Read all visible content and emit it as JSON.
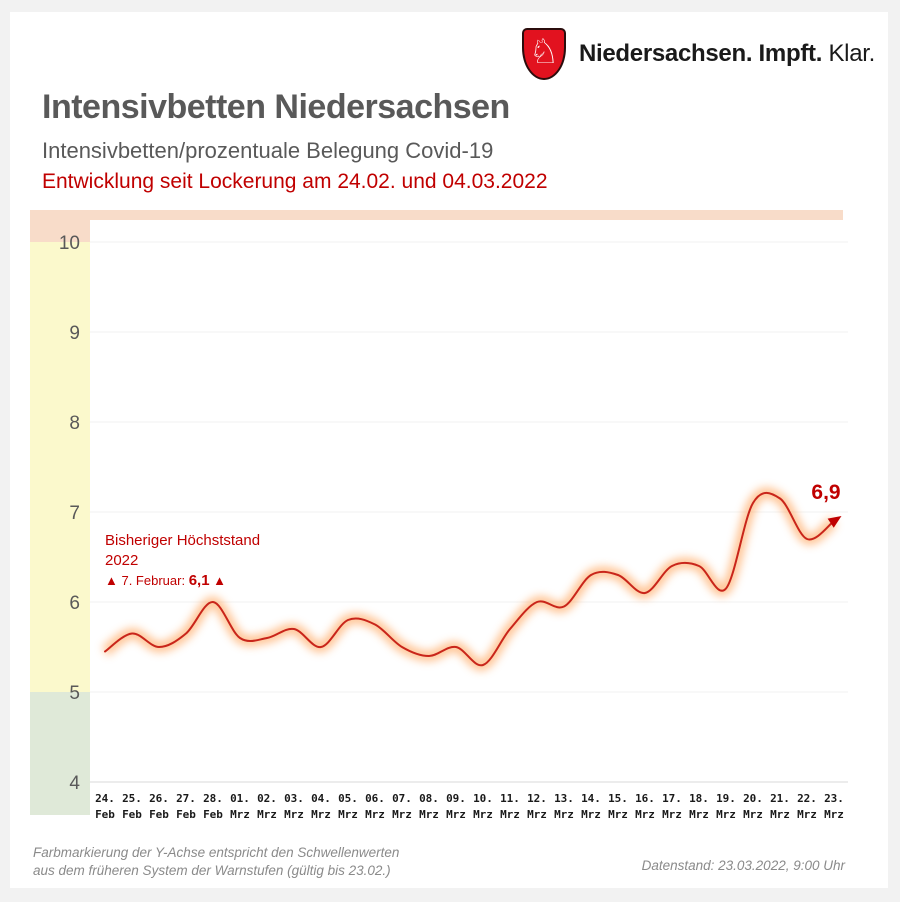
{
  "header": {
    "shield_icon": "niedersachsen-horse-shield",
    "horse_glyph": "♘",
    "brand_bold": "Niedersachsen. Impft.",
    "brand_light": "Klar.",
    "shield_color": "#e2121f"
  },
  "titles": {
    "main": "Intensivbetten Niedersachsen",
    "sub": "Intensivbetten/prozentuale Belegung Covid-19",
    "highlight": "Entwicklung seit Lockerung am 24.02. und 04.03.2022"
  },
  "annotation": {
    "line1": "Bisheriger Höchststand",
    "line2": "2022",
    "line3_prefix": "▲ 7. Februar: ",
    "line3_value": "6,1",
    "line3_suffix": " ▲"
  },
  "end_label": "6,9",
  "footer": {
    "note_line1": "Farbmarkierung der Y-Achse entspricht den Schwellenwerten",
    "note_line2": "aus dem früheren System der Warnstufen (gültig bis 23.02.)",
    "datenstand": "Datenstand: 23.03.2022, 9:00 Uhr"
  },
  "chart_data": {
    "type": "line",
    "title": "Intensivbetten/prozentuale Belegung Covid-19",
    "categories": [
      "24. Feb",
      "25. Feb",
      "26. Feb",
      "27. Feb",
      "28. Feb",
      "01. Mrz",
      "02. Mrz",
      "03. Mrz",
      "04. Mrz",
      "05. Mrz",
      "06. Mrz",
      "07. Mrz",
      "08. Mrz",
      "09. Mrz",
      "10. Mrz",
      "11. Mrz",
      "12. Mrz",
      "13. Mrz",
      "14. Mrz",
      "15. Mrz",
      "16. Mrz",
      "17. Mrz",
      "18. Mrz",
      "19. Mrz",
      "20. Mrz",
      "21. Mrz",
      "22. Mrz",
      "23. Mrz"
    ],
    "values": [
      5.45,
      5.65,
      5.5,
      5.65,
      6.0,
      5.6,
      5.6,
      5.7,
      5.5,
      5.8,
      5.75,
      5.5,
      5.4,
      5.5,
      5.3,
      5.7,
      6.0,
      5.95,
      6.3,
      6.3,
      6.1,
      6.4,
      6.4,
      6.15,
      7.1,
      7.15,
      6.7,
      6.9
    ],
    "last_value_label": "6,9",
    "previous_peak": {
      "date": "7. Februar",
      "value": 6.1
    },
    "ylim": [
      4,
      10.35
    ],
    "yticks": [
      4,
      5,
      6,
      7,
      8,
      9,
      10
    ],
    "grid": true,
    "legend": "none",
    "xlabel": "",
    "ylabel": "",
    "threshold_bands": [
      {
        "name": "warnstufe-rot",
        "range": "über 10",
        "color": "#f8dcc9"
      },
      {
        "name": "warnstufe-gelb",
        "range": "5 bis 10",
        "color": "#fbf9cc"
      },
      {
        "name": "warnstufe-gruen",
        "range": "4 bis 5",
        "color": "#dfe9d8"
      }
    ],
    "line_color": "#c9251a",
    "glow_color": "#ff9e4f",
    "accent_color": "#c00000",
    "grid_color": "#f2f2f2",
    "axis_color": "#d9d9d9",
    "ytick_color": "#595959",
    "xtick_color": "#1a1a1a"
  }
}
